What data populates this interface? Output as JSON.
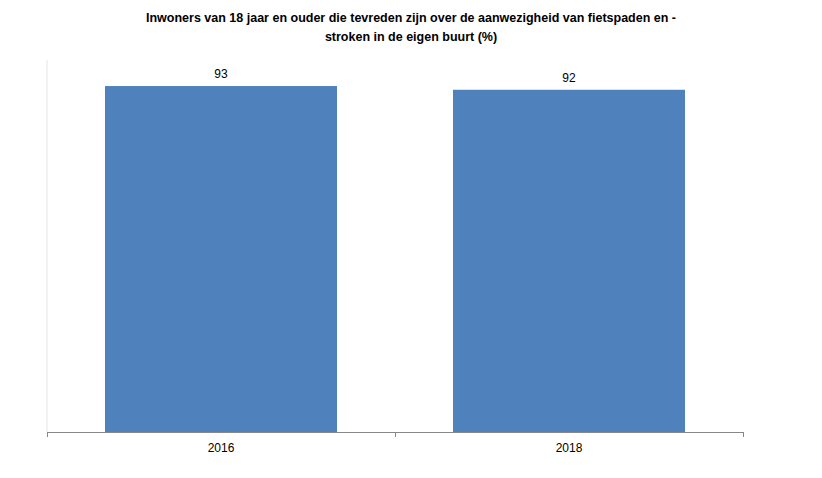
{
  "chart_data": {
    "type": "bar",
    "title": "Inwoners van 18 jaar en ouder die tevreden zijn over de aanwezigheid van fietspaden en -\nstroken in de eigen buurt (%)",
    "categories": [
      "2016",
      "2018"
    ],
    "values": [
      93,
      92
    ],
    "color": "#4f81bd",
    "ylim": [
      0,
      100
    ],
    "data_labels": true,
    "tick_labels": "x",
    "grid": false
  }
}
